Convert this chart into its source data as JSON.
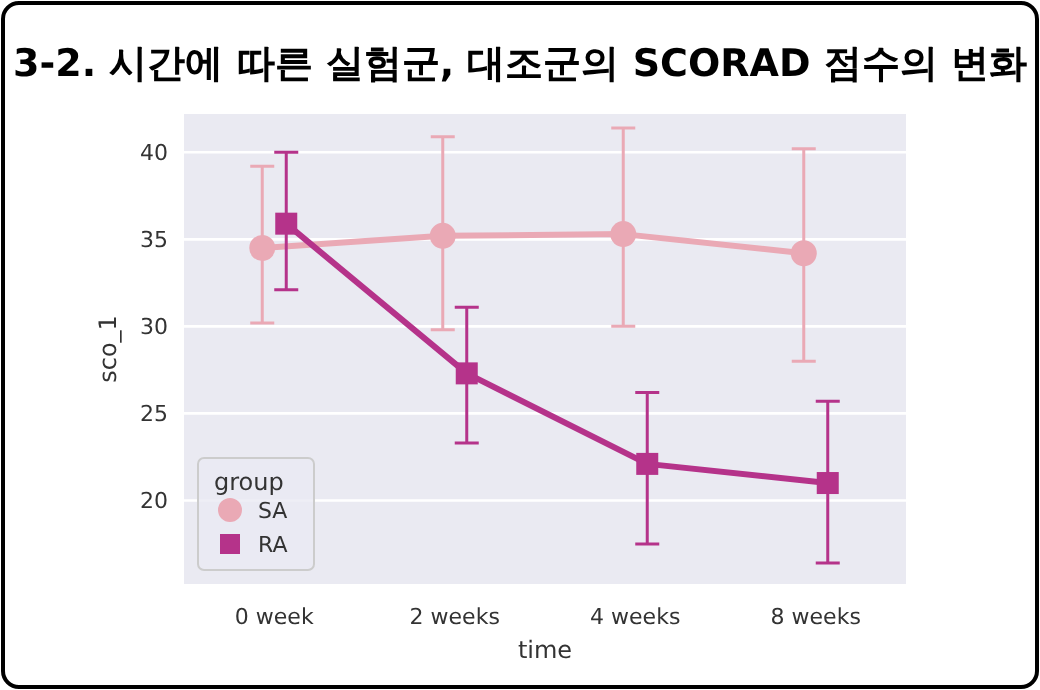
{
  "chart_data": {
    "type": "line",
    "title": "3-2. 시간에 따른 실험군, 대조군의 SCORAD 점수의 변화",
    "xlabel": "time",
    "ylabel": "sco_1",
    "legend_title": "group",
    "categories": [
      "0 week",
      "2 weeks",
      "4 weeks",
      "8 weeks"
    ],
    "series": [
      {
        "name": "SA",
        "color": "#eaa9b5",
        "marker": "circle",
        "values": [
          34.5,
          35.2,
          35.3,
          34.2
        ],
        "errors": [
          [
            30.2,
            39.2
          ],
          [
            29.8,
            40.9
          ],
          [
            30.0,
            41.4
          ],
          [
            28.0,
            40.2
          ]
        ]
      },
      {
        "name": "RA",
        "color": "#b5338a",
        "marker": "square",
        "values": [
          35.9,
          27.3,
          22.1,
          21.0
        ],
        "errors": [
          [
            32.1,
            40.0
          ],
          [
            23.3,
            31.1
          ],
          [
            17.5,
            26.2
          ],
          [
            16.4,
            25.7
          ]
        ]
      }
    ],
    "ylim": [
      15.2,
      42.2
    ],
    "yticks": [
      20,
      25,
      30,
      35,
      40
    ],
    "grid": "y",
    "legend": "bottom left"
  }
}
